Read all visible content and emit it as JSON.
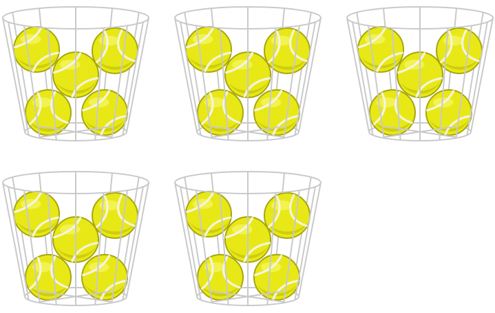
{
  "scene": {
    "baskets": [
      {
        "balls": 5
      },
      {
        "balls": 5
      },
      {
        "balls": 5
      },
      {
        "balls": 5
      },
      {
        "balls": 5
      }
    ]
  },
  "colors": {
    "ball_fill": "#e8e817",
    "ball_dark": "#b8b80a",
    "ball_outline": "#a6a60f",
    "ball_seam": "#f4f4e0",
    "ball_highlight": "#f6f66a",
    "wire": "#c9c9c9"
  }
}
